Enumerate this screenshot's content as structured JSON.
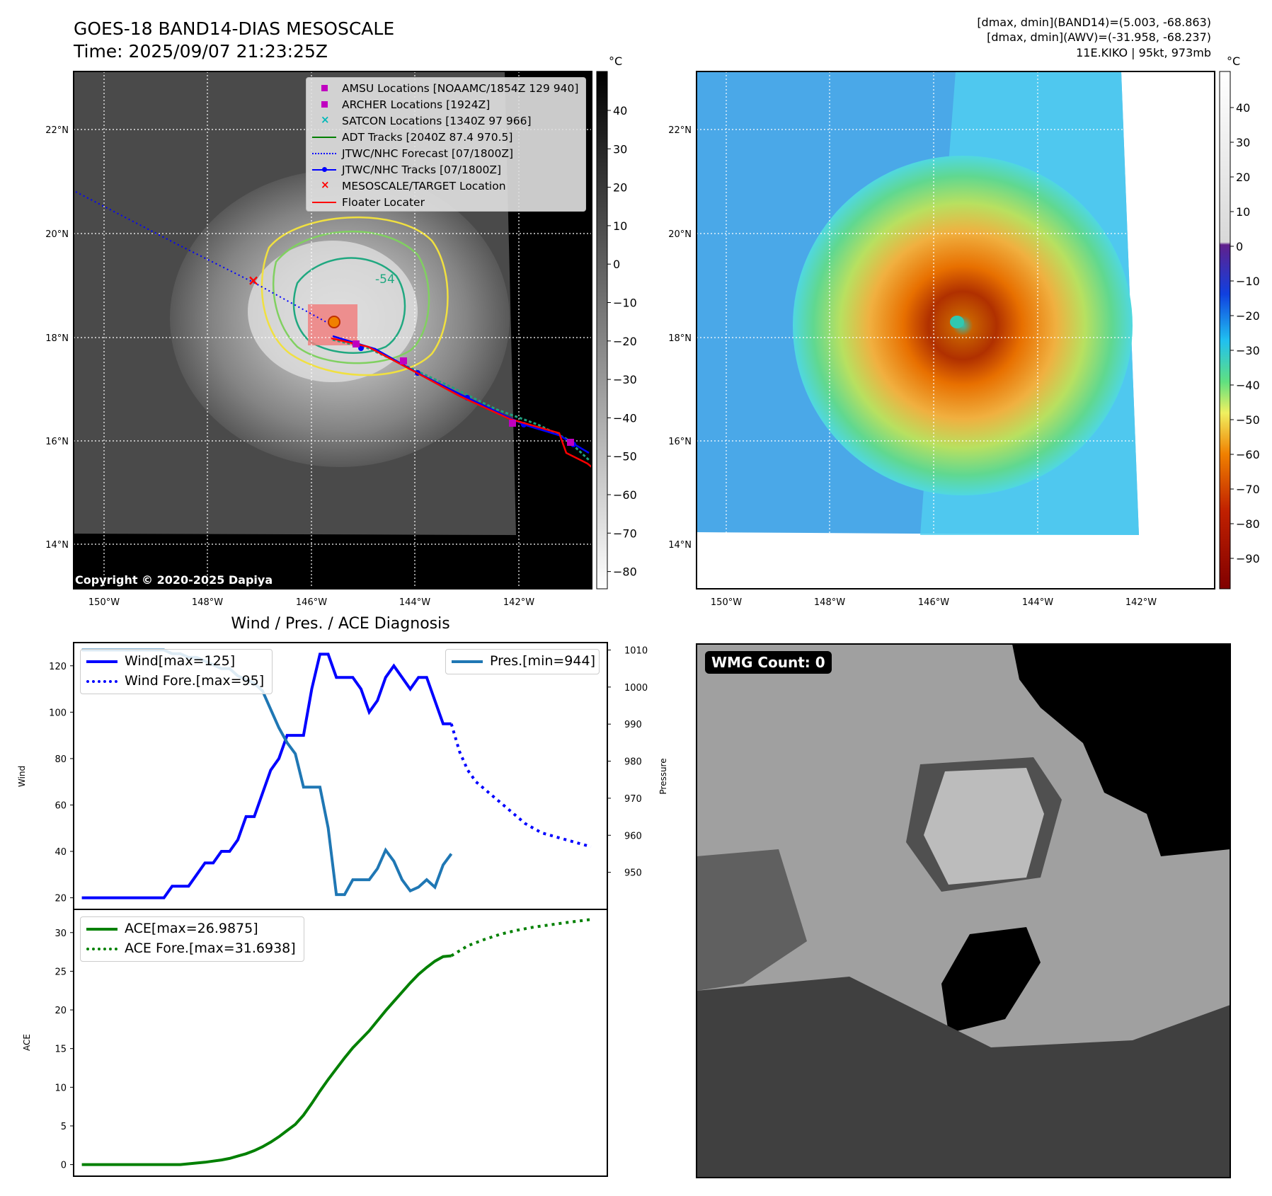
{
  "header": {
    "title_line1": "GOES-18 BAND14-DIAS MESOSCALE",
    "title_line2": "Time: 2025/09/07 21:23:25Z",
    "right_line1": "[dmax, dmin](BAND14)=(5.003, -68.863)",
    "right_line2": "[dmax, dmin](AWV)=(-31.958, -68.237)",
    "right_line3": "11E.KIKO | 95kt, 973mb",
    "copyright": "Copyright © 2020-2025 Dapiya"
  },
  "map": {
    "lat_labels": [
      "22°N",
      "20°N",
      "18°N",
      "16°N",
      "14°N"
    ],
    "lon_labels": [
      "150°W",
      "148°W",
      "146°W",
      "144°W",
      "142°W"
    ],
    "colorbar_unit": "°C",
    "gray_colorbar_ticks": [
      "40",
      "30",
      "20",
      "10",
      "0",
      "−10",
      "−20",
      "−30",
      "−40",
      "−50",
      "−60",
      "−70",
      "−80"
    ],
    "color_colorbar_ticks": [
      "40",
      "30",
      "20",
      "10",
      "0",
      "−10",
      "−20",
      "−30",
      "−40",
      "−50",
      "−60",
      "−70",
      "−80",
      "−90"
    ],
    "contour_label": "-54",
    "legend": [
      {
        "label": "AMSU Locations [NOAAMC/1854Z 129 940]",
        "symbol": "square",
        "color": "#c000c0"
      },
      {
        "label": "ARCHER Locations [1924Z]",
        "symbol": "square",
        "color": "#c000c0"
      },
      {
        "label": "SATCON Locations [1340Z 97 966]",
        "symbol": "x",
        "color": "#00b8b8"
      },
      {
        "label": "ADT Tracks [2040Z 87.4 970.5]",
        "symbol": "line",
        "color": "#008000"
      },
      {
        "label": "JTWC/NHC Forecast [07/1800Z]",
        "symbol": "dotted",
        "color": "#0000ff"
      },
      {
        "label": "JTWC/NHC Tracks [07/1800Z]",
        "symbol": "line-dot",
        "color": "#0000ff"
      },
      {
        "label": "MESOSCALE/TARGET Location",
        "symbol": "x",
        "color": "#ff0000"
      },
      {
        "label": "Floater Locater",
        "symbol": "line",
        "color": "#ff0000"
      }
    ]
  },
  "wmg": {
    "label": "WMG Count: 0"
  },
  "chart_data": [
    {
      "type": "line",
      "title": "Wind / Pres. / ACE Diagnosis",
      "ylabel": "Wind",
      "ylabel_right": "Pressure",
      "ylim": [
        15,
        130
      ],
      "ylim_right": [
        940,
        1012
      ],
      "yticks": [
        20,
        40,
        60,
        80,
        100,
        120
      ],
      "yticks_right": [
        950,
        960,
        970,
        980,
        990,
        1000,
        1010
      ],
      "xlim": [
        -1,
        64
      ],
      "series": [
        {
          "name": "Wind[max=125]",
          "color": "#0000ff",
          "style": "solid",
          "axis": "left",
          "x": [
            0,
            1,
            2,
            3,
            4,
            5,
            6,
            7,
            8,
            9,
            10,
            11,
            12,
            13,
            14,
            15,
            16,
            17,
            18,
            19,
            20,
            21,
            22,
            23,
            24,
            25,
            26,
            27,
            28,
            29,
            30,
            31,
            32,
            33,
            34,
            35,
            36,
            37,
            38,
            39,
            40,
            41,
            42,
            43,
            44,
            45
          ],
          "values": [
            20,
            20,
            20,
            20,
            20,
            20,
            20,
            20,
            20,
            20,
            20,
            25,
            25,
            25,
            30,
            35,
            35,
            40,
            40,
            45,
            55,
            55,
            65,
            75,
            80,
            90,
            90,
            90,
            110,
            125,
            125,
            115,
            115,
            115,
            110,
            100,
            105,
            115,
            120,
            115,
            110,
            115,
            115,
            105,
            95,
            95
          ]
        },
        {
          "name": "Wind Fore.[max=95]",
          "color": "#0000ff",
          "style": "dotted",
          "axis": "left",
          "x": [
            45,
            46,
            47,
            48,
            49,
            50,
            51,
            52,
            53,
            54,
            55,
            56,
            57,
            58,
            59,
            60,
            61,
            62
          ],
          "values": [
            95,
            83,
            75,
            70,
            67,
            64,
            61,
            58,
            55,
            52,
            50,
            48,
            47,
            46,
            45,
            44,
            43,
            42
          ]
        },
        {
          "name": "Pres.[min=944]",
          "color": "#1f77b4",
          "style": "solid",
          "axis": "right",
          "x": [
            0,
            1,
            2,
            3,
            4,
            5,
            6,
            7,
            8,
            9,
            10,
            11,
            12,
            13,
            14,
            15,
            16,
            17,
            18,
            19,
            20,
            21,
            22,
            23,
            24,
            25,
            26,
            27,
            28,
            29,
            30,
            31,
            32,
            33,
            34,
            35,
            36,
            37,
            38,
            39,
            40,
            41,
            42,
            43,
            44,
            45
          ],
          "values": [
            1010,
            1010,
            1010,
            1010,
            1010,
            1010,
            1010,
            1010,
            1010,
            1010,
            1010,
            1009,
            1009,
            1008,
            1008,
            1007,
            1006,
            1005,
            1005,
            1003,
            1002,
            1001,
            999,
            994,
            989,
            985,
            982,
            973,
            973,
            973,
            962,
            944,
            944,
            948,
            948,
            948,
            951,
            956,
            953,
            948,
            945,
            946,
            948,
            946,
            952,
            955
          ]
        }
      ]
    },
    {
      "type": "line",
      "ylabel": "ACE",
      "ylim": [
        -1.5,
        33
      ],
      "yticks": [
        0,
        5,
        10,
        15,
        20,
        25,
        30
      ],
      "xlim": [
        -1,
        64
      ],
      "series": [
        {
          "name": "ACE[max=26.9875]",
          "color": "#008000",
          "style": "solid",
          "x": [
            0,
            1,
            2,
            3,
            4,
            5,
            6,
            7,
            8,
            9,
            10,
            11,
            12,
            13,
            14,
            15,
            16,
            17,
            18,
            19,
            20,
            21,
            22,
            23,
            24,
            25,
            26,
            27,
            28,
            29,
            30,
            31,
            32,
            33,
            34,
            35,
            36,
            37,
            38,
            39,
            40,
            41,
            42,
            43,
            44,
            45
          ],
          "values": [
            0,
            0,
            0,
            0,
            0,
            0,
            0,
            0,
            0,
            0,
            0,
            0,
            0,
            0.1,
            0.2,
            0.3,
            0.45,
            0.6,
            0.8,
            1.1,
            1.4,
            1.8,
            2.3,
            2.9,
            3.6,
            4.4,
            5.2,
            6.4,
            7.9,
            9.5,
            11.0,
            12.4,
            13.8,
            15.1,
            16.2,
            17.3,
            18.6,
            19.9,
            21.1,
            22.3,
            23.5,
            24.6,
            25.5,
            26.3,
            26.9,
            27.0
          ]
        },
        {
          "name": "ACE Fore.[max=31.6938]",
          "color": "#008000",
          "style": "dotted",
          "x": [
            45,
            47,
            49,
            51,
            53,
            55,
            57,
            59,
            61,
            62
          ],
          "values": [
            27.0,
            28.3,
            29.1,
            29.8,
            30.3,
            30.7,
            31.0,
            31.3,
            31.55,
            31.7
          ]
        }
      ]
    }
  ]
}
